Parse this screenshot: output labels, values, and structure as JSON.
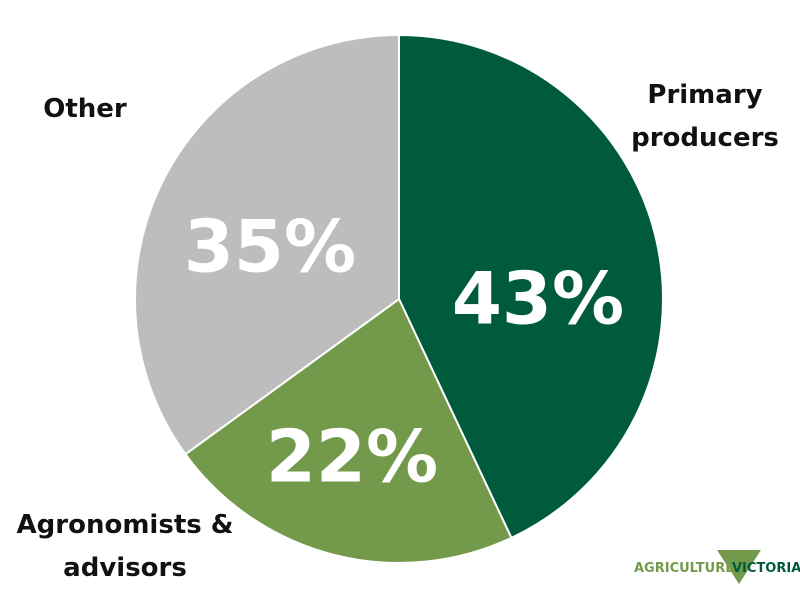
{
  "chart_data": {
    "type": "pie",
    "categories": [
      "Primary producers",
      "Agronomists & advisors",
      "Other"
    ],
    "values": [
      43,
      22,
      35
    ],
    "value_labels": [
      "43%",
      "22%",
      "35%"
    ],
    "colors": [
      "#005a3c",
      "#739a4b",
      "#bdbdbd"
    ]
  },
  "logo": {
    "left": "AGRICULTURE",
    "right": "VICTORIA"
  }
}
